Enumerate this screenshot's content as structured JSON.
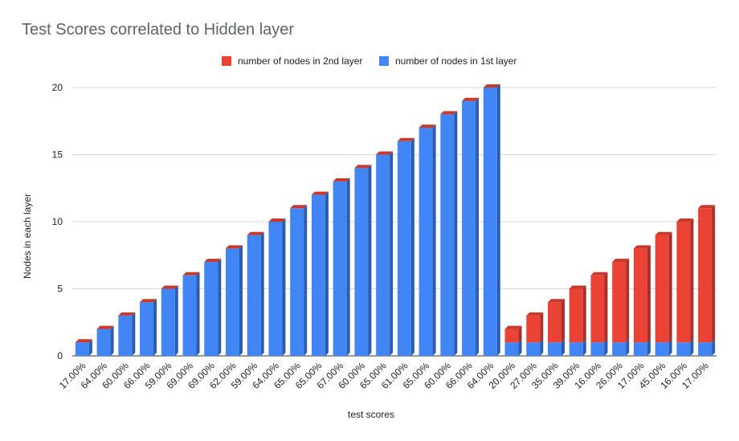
{
  "chart_data": {
    "type": "bar",
    "stacked": true,
    "three_d": true,
    "title": "Test Scores correlated to Hidden layer",
    "xlabel": "test scores",
    "ylabel": "Nodes in each layer",
    "ylim": [
      0,
      20
    ],
    "yticks": [
      0,
      5,
      10,
      15,
      20
    ],
    "grid": true,
    "legend_position": "top",
    "categories": [
      "17.00%",
      "64.00%",
      "60.00%",
      "66.00%",
      "59.00%",
      "69.00%",
      "69.00%",
      "62.00%",
      "59.00%",
      "64.00%",
      "65.00%",
      "65.00%",
      "67.00%",
      "60.00%",
      "65.00%",
      "61.00%",
      "65.00%",
      "60.00%",
      "66.00%",
      "64.00%",
      "20.00%",
      "27.00%",
      "35.00%",
      "39.00%",
      "16.00%",
      "26.00%",
      "17.00%",
      "45.00%",
      "16.00%",
      "17.00%"
    ],
    "series": [
      {
        "name": "number of nodes in 1st layer",
        "color": "#4285f4",
        "side_color": "#2a5db0",
        "values": [
          1,
          2,
          3,
          4,
          5,
          6,
          7,
          8,
          9,
          10,
          11,
          12,
          13,
          14,
          15,
          16,
          17,
          18,
          19,
          20,
          1,
          1,
          1,
          1,
          1,
          1,
          1,
          1,
          1,
          1
        ]
      },
      {
        "name": "number of nodes in 2nd layer",
        "color": "#ea4335",
        "side_color": "#a8302a",
        "values": [
          0,
          0,
          0,
          0,
          0,
          0,
          0,
          0,
          0,
          0,
          0,
          0,
          0,
          0,
          0,
          0,
          0,
          0,
          0,
          0,
          1,
          2,
          3,
          4,
          5,
          6,
          7,
          8,
          9,
          10
        ]
      }
    ],
    "legend_order": [
      "number of nodes in 2nd layer",
      "number of nodes in 1st layer"
    ]
  }
}
